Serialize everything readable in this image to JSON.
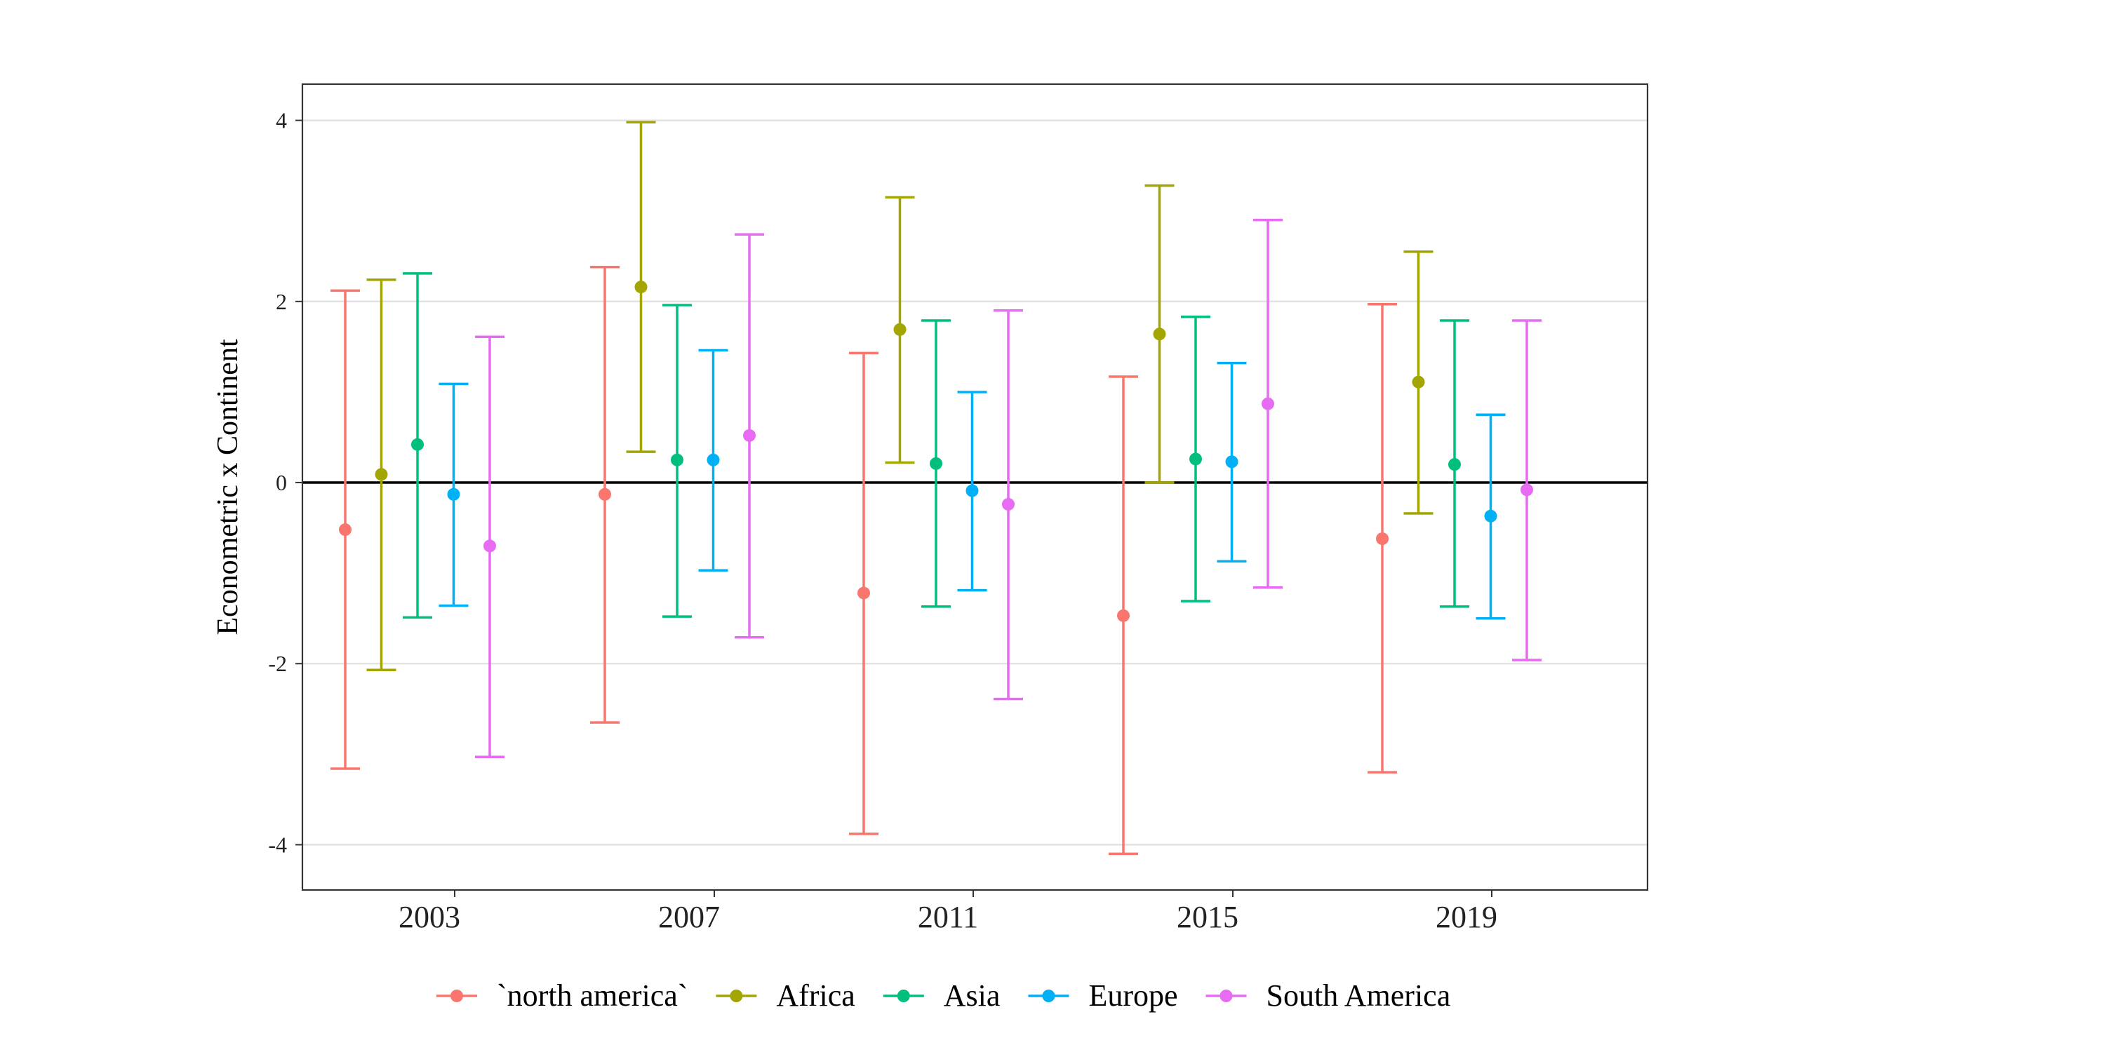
{
  "chart_data": {
    "type": "errorbar",
    "ylabel": "Econometric x Continent",
    "xlabel": "",
    "categories": [
      "2003",
      "2007",
      "2011",
      "2015",
      "2019"
    ],
    "ylim": [
      -4.5,
      4.4
    ],
    "yticks": [
      -4,
      -2,
      0,
      2,
      4
    ],
    "ytick_labels": [
      "-4",
      "-2",
      "0",
      "2",
      "4"
    ],
    "grid": true,
    "zero_line": true,
    "legend_position": "bottom",
    "series": [
      {
        "name": "`north america`",
        "color": "#F8766D",
        "estimate": [
          -0.52,
          -0.13,
          -1.22,
          -1.47,
          -0.62
        ],
        "lower": [
          -3.16,
          -2.65,
          -3.88,
          -4.1,
          -3.2
        ],
        "upper": [
          2.12,
          2.38,
          1.43,
          1.17,
          1.97
        ]
      },
      {
        "name": "Africa",
        "color": "#A3A500",
        "estimate": [
          0.09,
          2.16,
          1.69,
          1.64,
          1.11
        ],
        "lower": [
          -2.07,
          0.34,
          0.22,
          0.0,
          -0.34
        ],
        "upper": [
          2.24,
          3.98,
          3.15,
          3.28,
          2.55
        ]
      },
      {
        "name": "Asia",
        "color": "#00BF7D",
        "estimate": [
          0.42,
          0.25,
          0.21,
          0.26,
          0.2
        ],
        "lower": [
          -1.49,
          -1.48,
          -1.37,
          -1.31,
          -1.37
        ],
        "upper": [
          2.31,
          1.96,
          1.79,
          1.83,
          1.79
        ]
      },
      {
        "name": "Europe",
        "color": "#00B0F6",
        "estimate": [
          -0.13,
          0.25,
          -0.09,
          0.23,
          -0.37
        ],
        "lower": [
          -1.36,
          -0.97,
          -1.19,
          -0.87,
          -1.5
        ],
        "upper": [
          1.09,
          1.46,
          1.0,
          1.32,
          0.75
        ]
      },
      {
        "name": "South America",
        "color": "#E76BF3",
        "estimate": [
          -0.7,
          0.52,
          -0.24,
          0.87,
          -0.08
        ],
        "lower": [
          -3.03,
          -1.71,
          -2.39,
          -1.16,
          -1.96
        ],
        "upper": [
          1.61,
          2.74,
          1.9,
          2.9,
          1.79
        ]
      }
    ]
  }
}
